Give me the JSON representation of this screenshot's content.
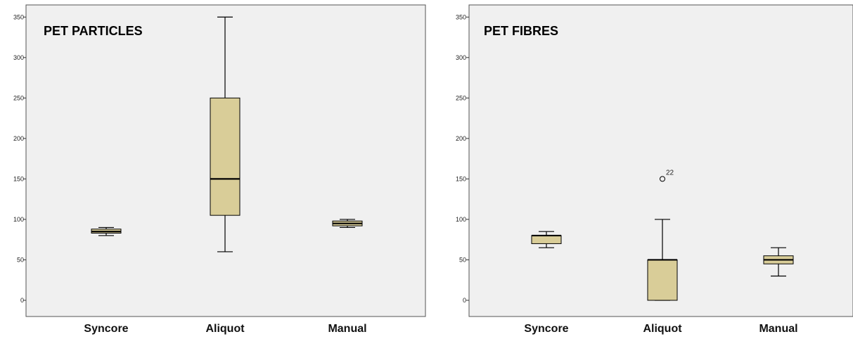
{
  "colors": {
    "plot_background": "#f0f0f0",
    "box_fill": "#d9cd98",
    "line": "#000000"
  },
  "chart_data": [
    {
      "type": "boxplot",
      "title": "PET PARTICLES",
      "categories": [
        "Syncore",
        "Aliquot",
        "Manual"
      ],
      "yticks": [
        0,
        50,
        100,
        150,
        200,
        250,
        300,
        350
      ],
      "ylim": [
        -20,
        365
      ],
      "grid": false,
      "boxes": [
        {
          "category": "Syncore",
          "min": 80,
          "q1": 83,
          "median": 85,
          "q3": 88,
          "max": 90,
          "outliers": []
        },
        {
          "category": "Aliquot",
          "min": 60,
          "q1": 105,
          "median": 150,
          "q3": 250,
          "max": 350,
          "outliers": []
        },
        {
          "category": "Manual",
          "min": 90,
          "q1": 92,
          "median": 95,
          "q3": 98,
          "max": 100,
          "outliers": []
        }
      ]
    },
    {
      "type": "boxplot",
      "title": "PET FIBRES",
      "categories": [
        "Syncore",
        "Aliquot",
        "Manual"
      ],
      "yticks": [
        0,
        50,
        100,
        150,
        200,
        250,
        300,
        350
      ],
      "ylim": [
        -20,
        365
      ],
      "grid": false,
      "boxes": [
        {
          "category": "Syncore",
          "min": 65,
          "q1": 70,
          "median": 80,
          "q3": 80,
          "max": 85,
          "outliers": []
        },
        {
          "category": "Aliquot",
          "min": 0,
          "q1": 0,
          "median": 50,
          "q3": 50,
          "max": 100,
          "outliers": [
            {
              "value": 150,
              "label": "22"
            }
          ]
        },
        {
          "category": "Manual",
          "min": 30,
          "q1": 45,
          "median": 50,
          "q3": 55,
          "max": 65,
          "outliers": []
        }
      ]
    }
  ]
}
